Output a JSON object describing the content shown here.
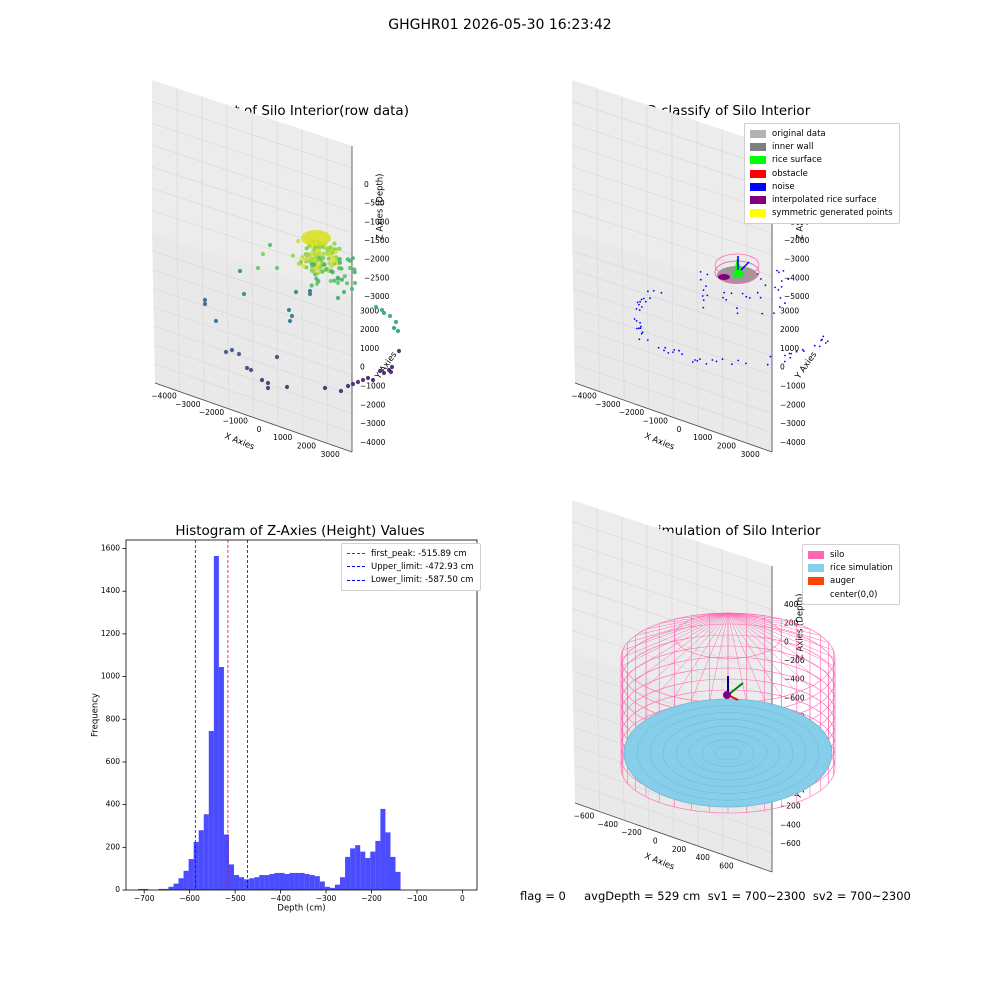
{
  "figure": {
    "title": "GHGHR01 2026-05-30 16:23:42",
    "footer": "flag = 0     avgDepth = 529 cm  sv1 = 700~2300  sv2 = 700~2300"
  },
  "panels": {
    "p1": {
      "title": "3D Plot of Silo Interior(row data)",
      "xlabel": "X Axies",
      "ylabel": "Y Axies",
      "zlabel": "Z Axies (Depth)",
      "xticks": [
        "−4000",
        "−3000",
        "−2000",
        "−1000",
        "0",
        "1000",
        "2000",
        "3000"
      ],
      "yticks": [
        "3000",
        "2000",
        "1000",
        "0",
        "−1000",
        "−2000",
        "−3000",
        "−4000"
      ],
      "zticks": [
        "0",
        "−500",
        "−1000",
        "−1500",
        "−2000",
        "−2500",
        "−3000"
      ]
    },
    "p2": {
      "title": "3D classify of Silo Interior",
      "xlabel": "X Axies",
      "ylabel": "Y Axies",
      "zlabel": "Z Axies (Depth)",
      "xticks": [
        "−4000",
        "−3000",
        "−2000",
        "−1000",
        "0",
        "1000",
        "2000",
        "3000"
      ],
      "yticks": [
        "3000",
        "2000",
        "1000",
        "0",
        "−1000",
        "−2000",
        "−3000",
        "−4000"
      ],
      "zticks": [
        "1000",
        "0",
        "−1000",
        "−2000",
        "−3000",
        "−4000",
        "−5000"
      ],
      "legend": [
        {
          "label": "original data",
          "color": "#b3b3b3"
        },
        {
          "label": "inner wall",
          "color": "#808080"
        },
        {
          "label": "rice surface",
          "color": "#00ff00"
        },
        {
          "label": "obstacle",
          "color": "#ff0000"
        },
        {
          "label": "noise",
          "color": "#0000ff"
        },
        {
          "label": "interpolated rice surface",
          "color": "#800080"
        },
        {
          "label": "symmetric generated points",
          "color": "#ffff00"
        }
      ]
    },
    "p4": {
      "title": "3D simulation of Silo Interior",
      "xlabel": "X Axies",
      "ylabel": "Y Axies",
      "zlabel": "Z Axies (Depth)",
      "xticks": [
        "−600",
        "−400",
        "−200",
        "0",
        "200",
        "400",
        "600"
      ],
      "yticks": [
        "600",
        "400",
        "200",
        "0",
        "−200",
        "−400",
        "−600"
      ],
      "zticks": [
        "400",
        "200",
        "0",
        "−200",
        "−400",
        "−600",
        "−800"
      ],
      "legend": [
        {
          "label": "silo",
          "color": "#ff69b4"
        },
        {
          "label": "rice simulation",
          "color": "#87ceeb"
        },
        {
          "label": "auger",
          "color": "#ff4500"
        },
        {
          "label": "center(0,0)",
          "color": ""
        }
      ]
    }
  },
  "chart_data": {
    "type": "bar",
    "title": "Histogram of Z-Axies (Height) Values",
    "xlabel": "Depth (cm)",
    "ylabel": "Frequency",
    "xlim": [
      -740,
      32
    ],
    "ylim": [
      0,
      1640
    ],
    "xticks": [
      -700,
      -600,
      -500,
      -400,
      -300,
      -200,
      -100,
      0
    ],
    "yticks": [
      0,
      200,
      400,
      600,
      800,
      1000,
      1200,
      1400,
      1600
    ],
    "bin_width": 11.1,
    "bar_color": "#0000ff",
    "bins_start": [
      -713.3,
      -702.2,
      -691.1,
      -680.0,
      -668.9,
      -657.8,
      -646.7,
      -635.6,
      -624.5,
      -613.4,
      -602.3,
      -591.2,
      -580.1,
      -569.0,
      -557.9,
      -546.8,
      -535.7,
      -524.6,
      -513.5,
      -502.4,
      -491.3,
      -480.2,
      -469.1,
      -458.0,
      -446.9,
      -435.8,
      -424.7,
      -413.6,
      -402.5,
      -391.4,
      -380.3,
      -369.2,
      -358.1,
      -347.0,
      -335.9,
      -324.8,
      -313.7,
      -302.6,
      -291.5,
      -280.4,
      -269.3,
      -258.2,
      -247.1,
      -236.0,
      -224.9,
      -213.8,
      -202.7,
      -191.6,
      -180.5,
      -169.4,
      -158.3,
      -147.2,
      -136.1,
      -125.0,
      -113.9,
      -102.8,
      -91.7,
      -80.6,
      -69.5,
      -58.4,
      -47.3,
      -36.2,
      -25.1,
      -14.0
    ],
    "values": [
      5,
      5,
      0,
      0,
      5,
      5,
      15,
      30,
      55,
      90,
      145,
      225,
      280,
      355,
      745,
      1565,
      1045,
      260,
      120,
      70,
      60,
      50,
      55,
      60,
      70,
      70,
      75,
      80,
      80,
      75,
      80,
      80,
      80,
      75,
      70,
      65,
      40,
      15,
      10,
      25,
      60,
      155,
      195,
      210,
      180,
      150,
      180,
      230,
      380,
      270,
      155,
      85,
      0,
      0,
      0,
      0,
      0,
      0,
      0,
      0,
      0,
      0,
      0,
      0
    ],
    "reference_lines": [
      {
        "label": "first_peak: -515.89 cm",
        "x": -515.89,
        "color": "#ff0000"
      },
      {
        "label": "Upper_limit: -472.93 cm",
        "x": -472.93,
        "color": "#0000ff"
      },
      {
        "label": "Lower_limit: -587.50 cm",
        "x": -587.5,
        "color": "#0000ff"
      }
    ],
    "legend_position": "upper right",
    "grid": false
  }
}
